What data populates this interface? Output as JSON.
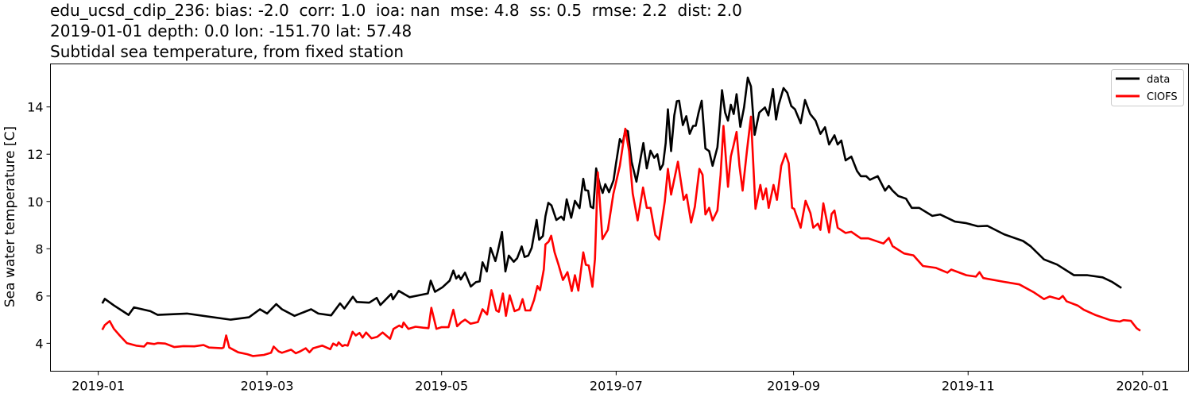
{
  "chart_data": {
    "type": "line",
    "title_lines": [
      "edu_ucsd_cdip_236: bias: -2.0  corr: 1.0  ioa: nan  mse: 4.8  ss: 0.5  rmse: 2.2  dist: 2.0",
      "2019-01-01 depth: 0.0 lon: -151.70 lat: 57.48",
      "Subtidal sea temperature, from fixed station"
    ],
    "xlabel": "",
    "ylabel": "Sea water temperature [C]",
    "x_unit": "days since 2019-01-01",
    "xlim": [
      -16.7,
      381
    ],
    "ylim": [
      2.82,
      15.82
    ],
    "x_ticks": [
      {
        "value": 0,
        "label": "2019-01"
      },
      {
        "value": 59,
        "label": "2019-03"
      },
      {
        "value": 120,
        "label": "2019-05"
      },
      {
        "value": 181,
        "label": "2019-07"
      },
      {
        "value": 243,
        "label": "2019-09"
      },
      {
        "value": 304,
        "label": "2019-11"
      },
      {
        "value": 365,
        "label": "2020-01"
      }
    ],
    "y_ticks": [
      {
        "value": 4,
        "label": "4"
      },
      {
        "value": 6,
        "label": "6"
      },
      {
        "value": 8,
        "label": "8"
      },
      {
        "value": 10,
        "label": "10"
      },
      {
        "value": 12,
        "label": "12"
      },
      {
        "value": 14,
        "label": "14"
      }
    ],
    "grid": false,
    "legend_position": "top-right",
    "series": [
      {
        "name": "data",
        "color": "#000000",
        "x": [
          1.4,
          2.3,
          5.5,
          10.6,
          12.5,
          18.2,
          20.8,
          31,
          46.3,
          52.7,
          56.5,
          59,
          62.2,
          64.2,
          68.6,
          74.4,
          76.9,
          81.4,
          84.5,
          86,
          89,
          90.3,
          94.7,
          97.3,
          98.6,
          102.4,
          103,
          105,
          108.8,
          115.2,
          116.2,
          117.7,
          120.3,
          122.8,
          124.1,
          125.1,
          126,
          126.7,
          128.2,
          130.2,
          132,
          133.3,
          134.3,
          135.8,
          137.1,
          138.8,
          139.6,
          141.1,
          142.3,
          143.5,
          145.2,
          146.4,
          148,
          149,
          150.3,
          151.5,
          153.2,
          154.1,
          155.4,
          156.3,
          157.3,
          158.4,
          160.1,
          161.8,
          162.7,
          163.7,
          165.3,
          166.6,
          168.2,
          169.5,
          170.2,
          171.2,
          172.1,
          173,
          174,
          175.3,
          176.3,
          177.2,
          178.5,
          180.1,
          180.9,
          182.3,
          183.3,
          184.2,
          185.1,
          186.4,
          188.1,
          189.4,
          190.5,
          191.7,
          193,
          194.3,
          195.4,
          196.4,
          197.4,
          198.3,
          199.1,
          200.2,
          201.3,
          202.2,
          203,
          204.3,
          205.5,
          206.7,
          207.9,
          208.8,
          209.8,
          210.9,
          212.2,
          213.5,
          214.7,
          216.4,
          217.1,
          218,
          219.1,
          220.1,
          221.1,
          222.1,
          223.1,
          224.4,
          225.7,
          227,
          228.1,
          229.4,
          231,
          233,
          234.2,
          235.8,
          236.9,
          237.8,
          239.5,
          240.8,
          242.2,
          243.5,
          245.5,
          247,
          248.8,
          250.7,
          252.4,
          254,
          255.4,
          257.3,
          258.4,
          259.7,
          261.2,
          263.2,
          265.2,
          266.5,
          268.4,
          269.7,
          272.4,
          275,
          276.3,
          277.6,
          279.6,
          282.3,
          284.3,
          286.9,
          291.5,
          294.2,
          299.4,
          303.4,
          307.4,
          310.7,
          316.6,
          323.2,
          325.8,
          330.5,
          335.1,
          341,
          345.7,
          351,
          354.3,
          357.6
        ],
        "y": [
          5.69,
          5.88,
          5.6,
          5.2,
          5.52,
          5.36,
          5.2,
          5.26,
          5.0,
          5.1,
          5.44,
          5.26,
          5.66,
          5.44,
          5.16,
          5.44,
          5.26,
          5.18,
          5.69,
          5.47,
          5.97,
          5.75,
          5.72,
          5.92,
          5.62,
          6.09,
          5.86,
          6.22,
          5.95,
          6.11,
          6.65,
          6.18,
          6.37,
          6.65,
          7.08,
          6.74,
          6.87,
          6.7,
          6.99,
          6.4,
          6.59,
          6.62,
          7.43,
          7.04,
          8.04,
          7.48,
          7.87,
          8.71,
          7.04,
          7.71,
          7.45,
          7.6,
          8.1,
          7.65,
          7.71,
          8.04,
          9.22,
          8.38,
          8.54,
          9.38,
          9.94,
          9.83,
          9.22,
          9.36,
          9.22,
          10.09,
          9.31,
          10.03,
          9.72,
          10.96,
          10.48,
          10.46,
          9.78,
          9.72,
          11.4,
          10.7,
          10.36,
          10.73,
          10.39,
          10.9,
          11.57,
          12.64,
          12.47,
          13.03,
          12.97,
          11.68,
          10.84,
          11.74,
          12.47,
          11.4,
          12.15,
          11.85,
          12.0,
          11.35,
          11.57,
          12.47,
          13.9,
          12.13,
          13.64,
          14.24,
          14.26,
          13.23,
          13.61,
          12.86,
          13.2,
          13.2,
          13.76,
          14.26,
          12.24,
          12.13,
          11.51,
          12.3,
          13.25,
          14.71,
          13.76,
          13.42,
          14.09,
          13.7,
          14.54,
          13.16,
          13.98,
          15.24,
          14.87,
          12.82,
          13.76,
          13.98,
          13.64,
          14.76,
          13.47,
          14.09,
          14.8,
          14.6,
          14.04,
          13.9,
          13.31,
          14.29,
          13.7,
          13.42,
          12.86,
          13.14,
          12.41,
          12.8,
          12.41,
          12.58,
          11.74,
          11.9,
          11.29,
          11.07,
          11.07,
          10.92,
          11.07,
          10.46,
          10.66,
          10.46,
          10.23,
          10.12,
          9.73,
          9.73,
          9.39,
          9.45,
          9.15,
          9.08,
          8.95,
          8.97,
          8.61,
          8.33,
          8.11,
          7.55,
          7.33,
          6.88,
          6.88,
          6.79,
          6.6,
          6.34
        ]
      },
      {
        "name": "CIOFS",
        "color": "#ff0000",
        "x": [
          1.4,
          2.3,
          4,
          5.5,
          7.5,
          10,
          13.2,
          16,
          17.1,
          19.6,
          20.8,
          23.4,
          26.6,
          29.8,
          33.6,
          36.8,
          38.7,
          43.2,
          43.8,
          44.7,
          45.8,
          48.9,
          52.1,
          54,
          57.9,
          60.4,
          61.3,
          63,
          64.2,
          67.4,
          69,
          70.6,
          72.5,
          73.8,
          75.1,
          78.3,
          81.1,
          82.1,
          83.4,
          84,
          85.3,
          86.2,
          87.2,
          88.9,
          90,
          91.3,
          92.4,
          93.6,
          95.5,
          97.5,
          99.4,
          102,
          103.2,
          105.2,
          106.2,
          106.7,
          108.4,
          110.9,
          113.5,
          115.4,
          116.4,
          118.2,
          119.9,
          122.4,
          124.1,
          125.4,
          126.9,
          128.2,
          130.1,
          132.7,
          134.3,
          135.9,
          137.4,
          139.1,
          140,
          141.4,
          142.5,
          143.8,
          145.5,
          147.1,
          148.3,
          149.3,
          151,
          152.3,
          153.5,
          154.4,
          155.7,
          156.3,
          157.4,
          158.3,
          159.5,
          160.8,
          162.4,
          164,
          165.5,
          166.6,
          167.8,
          169.5,
          170.4,
          171.4,
          172.7,
          173.6,
          174.6,
          176.2,
          178.1,
          180,
          182.3,
          184.2,
          185.5,
          186.8,
          188.5,
          190.4,
          191.7,
          193,
          194.7,
          196,
          198,
          199.1,
          200.2,
          202.6,
          204.6,
          205.6,
          207.2,
          208.5,
          210.1,
          211.2,
          212.2,
          213.5,
          214.7,
          216.4,
          217.5,
          218.5,
          220.1,
          221.1,
          222,
          223.1,
          224.1,
          225.2,
          226.7,
          228.1,
          229.7,
          231.4,
          232.3,
          233.4,
          234.3,
          236,
          237.2,
          238.7,
          240.2,
          241.3,
          242.5,
          243.2,
          245.5,
          247.2,
          248.9,
          249.9,
          251.5,
          252.4,
          253.4,
          255.4,
          256.3,
          257.3,
          258.4,
          261.2,
          263.2,
          266.5,
          269.1,
          274.4,
          276.3,
          277.6,
          281.6,
          284.9,
          288.2,
          292.8,
          296.8,
          298.1,
          303.4,
          306.7,
          308,
          309.3,
          316.6,
          321.9,
          327.1,
          330.5,
          332.5,
          335.8,
          337.1,
          338.4,
          342.4,
          344.4,
          348.4,
          353.7,
          357,
          358.3,
          360.9,
          362.9,
          364.2
        ],
        "y": [
          4.57,
          4.77,
          4.94,
          4.61,
          4.33,
          4.01,
          3.9,
          3.86,
          4.01,
          3.97,
          4.01,
          3.99,
          3.84,
          3.88,
          3.87,
          3.93,
          3.82,
          3.79,
          3.82,
          4.33,
          3.82,
          3.62,
          3.54,
          3.46,
          3.51,
          3.6,
          3.86,
          3.66,
          3.6,
          3.73,
          3.58,
          3.66,
          3.79,
          3.62,
          3.79,
          3.9,
          3.75,
          3.99,
          3.9,
          4.04,
          3.88,
          3.93,
          3.9,
          4.49,
          4.33,
          4.44,
          4.24,
          4.46,
          4.21,
          4.27,
          4.46,
          4.19,
          4.61,
          4.75,
          4.68,
          4.88,
          4.61,
          4.7,
          4.66,
          4.64,
          5.5,
          4.61,
          4.68,
          4.68,
          5.42,
          4.72,
          4.9,
          5.0,
          4.83,
          4.9,
          5.44,
          5.22,
          6.25,
          5.39,
          5.33,
          6.11,
          5.16,
          6.03,
          5.36,
          5.44,
          5.87,
          5.39,
          5.39,
          5.83,
          6.42,
          6.25,
          7.12,
          8.18,
          8.3,
          8.55,
          7.85,
          7.35,
          6.68,
          7.01,
          6.21,
          6.88,
          6.23,
          7.85,
          7.32,
          7.29,
          6.39,
          7.57,
          11.23,
          8.41,
          8.8,
          10.31,
          11.51,
          13.08,
          12.13,
          10.34,
          9.2,
          10.59,
          9.73,
          9.73,
          8.58,
          8.39,
          10.01,
          11.38,
          10.29,
          11.68,
          10.07,
          10.29,
          9.11,
          9.78,
          11.38,
          11.13,
          9.45,
          9.73,
          9.2,
          9.62,
          11.13,
          13.2,
          10.62,
          11.91,
          12.36,
          12.94,
          11.51,
          10.46,
          12.13,
          13.59,
          9.69,
          10.7,
          10.09,
          10.55,
          9.73,
          10.7,
          10.07,
          11.51,
          12.02,
          11.62,
          9.73,
          9.69,
          8.89,
          10.03,
          9.51,
          8.89,
          9.06,
          8.8,
          9.92,
          8.69,
          9.47,
          9.62,
          8.89,
          8.67,
          8.72,
          8.44,
          8.44,
          8.22,
          8.46,
          8.11,
          7.8,
          7.72,
          7.27,
          7.19,
          6.99,
          7.12,
          6.88,
          6.82,
          7.01,
          6.76,
          6.6,
          6.49,
          6.15,
          5.87,
          5.98,
          5.87,
          6.0,
          5.78,
          5.59,
          5.42,
          5.2,
          4.98,
          4.92,
          4.98,
          4.95,
          4.64,
          4.53
        ]
      }
    ]
  }
}
